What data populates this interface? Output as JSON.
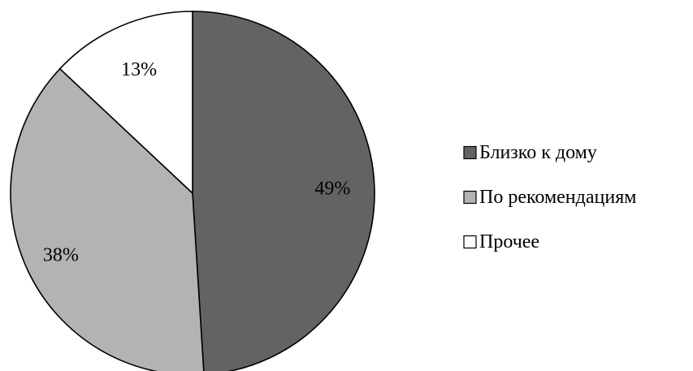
{
  "chart_data": {
    "type": "pie",
    "categories": [
      "Близко к дому",
      "По рекомендациям",
      "Прочее"
    ],
    "values": [
      49,
      38,
      13
    ],
    "labels": [
      "49%",
      "38%",
      "13%"
    ],
    "colors": [
      "#636363",
      "#b3b3b3",
      "#ffffff"
    ],
    "legend": {
      "position": "right",
      "entries": [
        "Близко к дому",
        "По рекомендациям",
        "Прочее"
      ]
    }
  }
}
